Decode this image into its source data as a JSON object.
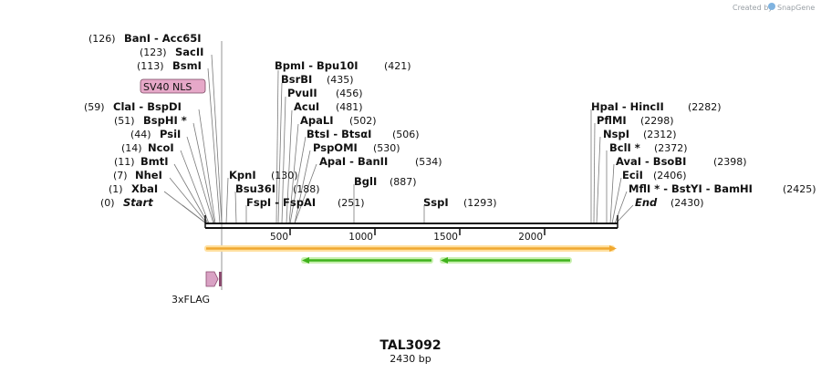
{
  "credit": {
    "text": "Created by",
    "brand": "SnapGene"
  },
  "title": "TAL3092",
  "subtitle": "2430 bp",
  "ruler": {
    "ticks": [
      500,
      1000,
      1500,
      2000
    ]
  },
  "labels_left": [
    {
      "num": "(126)",
      "text": "BanI  - Acc65I"
    },
    {
      "num": "(123)",
      "text": "SacII"
    },
    {
      "num": "(113)",
      "text": "BsmI"
    },
    {
      "num": "(59)",
      "text": "ClaI  - BspDI"
    },
    {
      "num": "(51)",
      "text": "BspHI *"
    },
    {
      "num": "(44)",
      "text": "PsiI"
    },
    {
      "num": "(14)",
      "text": "NcoI"
    },
    {
      "num": "(11)",
      "text": "BmtI"
    },
    {
      "num": "(7)",
      "text": "NheI"
    },
    {
      "num": "(1)",
      "text": "XbaI"
    },
    {
      "num": "(0)",
      "text": "Start"
    }
  ],
  "labels_mid": [
    {
      "text": "BpmI  - Bpu10I",
      "num": "(421)"
    },
    {
      "text": "BsrBI",
      "num": "(435)"
    },
    {
      "text": "PvuII",
      "num": "(456)"
    },
    {
      "text": "AcuI",
      "num": "(481)"
    },
    {
      "text": "ApaLI",
      "num": "(502)"
    },
    {
      "text": "BtsI  - BtsαI",
      "num": "(506)"
    },
    {
      "text": "PspOMI",
      "num": "(530)"
    },
    {
      "text": "ApaI  - BanII",
      "num": "(534)"
    },
    {
      "text": "KpnI",
      "num": "(130)"
    },
    {
      "text": "Bsu36I",
      "num": "(188)"
    },
    {
      "text": "FspI  - FspAI",
      "num": "(251)"
    },
    {
      "text": "BglI",
      "num": "(887)"
    },
    {
      "text": "SspI",
      "num": "(1293)"
    }
  ],
  "labels_right": [
    {
      "text": "HpaI  - HincII",
      "num": "(2282)"
    },
    {
      "text": "PflMI",
      "num": "(2298)"
    },
    {
      "text": "NspI",
      "num": "(2312)"
    },
    {
      "text": "BclI *",
      "num": "(2372)"
    },
    {
      "text": "AvaI  - BsoBI",
      "num": "(2398)"
    },
    {
      "text": "EciI",
      "num": "(2406)"
    },
    {
      "text": "MflI *  - BstYI  - BamHI",
      "num": "(2425)"
    },
    {
      "text": "End",
      "num": "(2430)"
    }
  ],
  "features": {
    "nls": "SV40 NLS",
    "flag": "3xFLAG"
  },
  "colors": {
    "orf": "#f0a830",
    "orf_glow": "#ffe0a0",
    "green": "#3fb21c",
    "green_glow": "#c8f0b0",
    "nls": "#e6a8c8",
    "flag": "#c98bb0"
  }
}
